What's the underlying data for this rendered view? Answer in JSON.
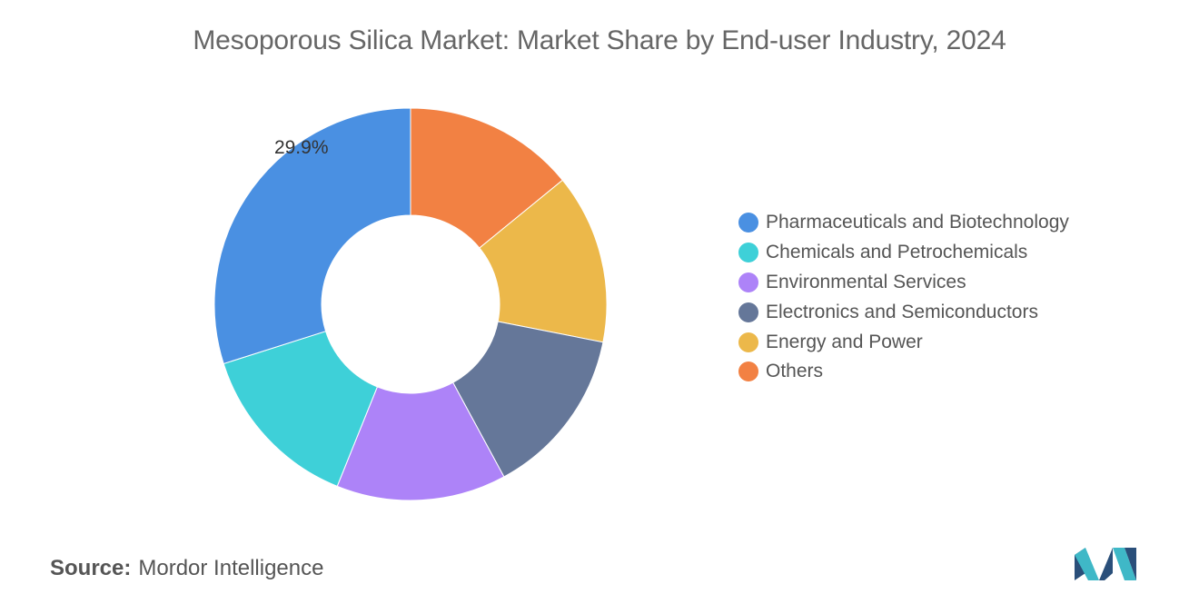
{
  "chart_data": {
    "type": "donut",
    "title": "Mesoporous Silica Market: Market Share by End-user Industry, 2024",
    "series": [
      {
        "name": "Pharmaceuticals and Biotechnology",
        "value": 29.9,
        "color": "#4a90e2",
        "label": "29.9%"
      },
      {
        "name": "Chemicals and Petrochemicals",
        "value": 14.0,
        "color": "#3ed0d8",
        "label": ""
      },
      {
        "name": "Environmental Services",
        "value": 14.0,
        "color": "#ad83f8",
        "label": ""
      },
      {
        "name": "Electronics and Semiconductors",
        "value": 14.0,
        "color": "#657799",
        "label": ""
      },
      {
        "name": "Energy and Power",
        "value": 14.0,
        "color": "#ecb84a",
        "label": ""
      },
      {
        "name": "Others",
        "value": 14.1,
        "color": "#f28143",
        "label": ""
      }
    ],
    "legend_position": "right",
    "data_label_shown": "29.9%"
  },
  "source": {
    "label": "Source:",
    "value": "Mordor Intelligence"
  },
  "logo": {
    "icon": "mordor-intelligence-logo-icon",
    "colors": [
      "#2a4f7a",
      "#3fb8c7"
    ]
  }
}
